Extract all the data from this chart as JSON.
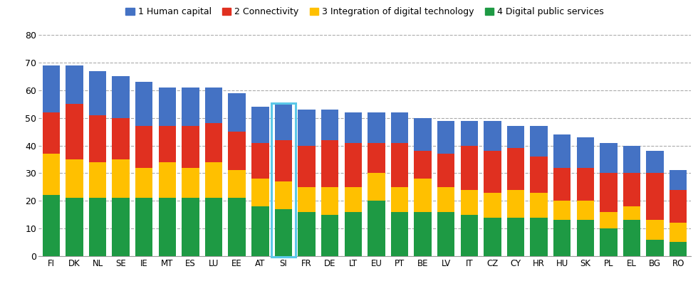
{
  "countries": [
    "FI",
    "DK",
    "NL",
    "SE",
    "IE",
    "MT",
    "ES",
    "LU",
    "EE",
    "AT",
    "SI",
    "FR",
    "DE",
    "LT",
    "EU",
    "PT",
    "BE",
    "LV",
    "IT",
    "CZ",
    "CY",
    "HR",
    "HU",
    "SK",
    "PL",
    "EL",
    "BG",
    "RO"
  ],
  "green": [
    22,
    21,
    21,
    21,
    21,
    21,
    21,
    21,
    21,
    18,
    17,
    16,
    15,
    16,
    20,
    16,
    16,
    16,
    15,
    14,
    14,
    14,
    13,
    13,
    10,
    13,
    6,
    5
  ],
  "yellow": [
    15,
    14,
    13,
    14,
    11,
    13,
    11,
    13,
    10,
    10,
    10,
    9,
    10,
    9,
    10,
    9,
    12,
    9,
    9,
    9,
    10,
    9,
    7,
    7,
    6,
    5,
    7,
    7
  ],
  "red": [
    15,
    20,
    17,
    15,
    15,
    13,
    15,
    14,
    14,
    13,
    15,
    15,
    17,
    16,
    11,
    16,
    10,
    12,
    16,
    15,
    15,
    13,
    12,
    12,
    14,
    12,
    17,
    12
  ],
  "blue": [
    17,
    14,
    16,
    15,
    16,
    14,
    14,
    13,
    14,
    13,
    13,
    13,
    11,
    11,
    11,
    11,
    12,
    12,
    9,
    11,
    8,
    11,
    12,
    11,
    11,
    10,
    8,
    7
  ],
  "si_index": 10,
  "colors": {
    "green": "#1e9a44",
    "yellow": "#ffc000",
    "red": "#e03020",
    "blue": "#4472c4"
  },
  "legend_labels": [
    "1 Human capital",
    "2 Connectivity",
    "3 Integration of digital technology",
    "4 Digital public services"
  ],
  "ylim": [
    0,
    80
  ],
  "yticks": [
    0,
    10,
    20,
    30,
    40,
    50,
    60,
    70,
    80
  ],
  "background_color": "#ffffff",
  "grid_color": "#aaaaaa",
  "highlight_color": "#5bc8e8",
  "bar_width": 0.75,
  "figsize": [
    9.8,
    4.09
  ],
  "dpi": 100
}
